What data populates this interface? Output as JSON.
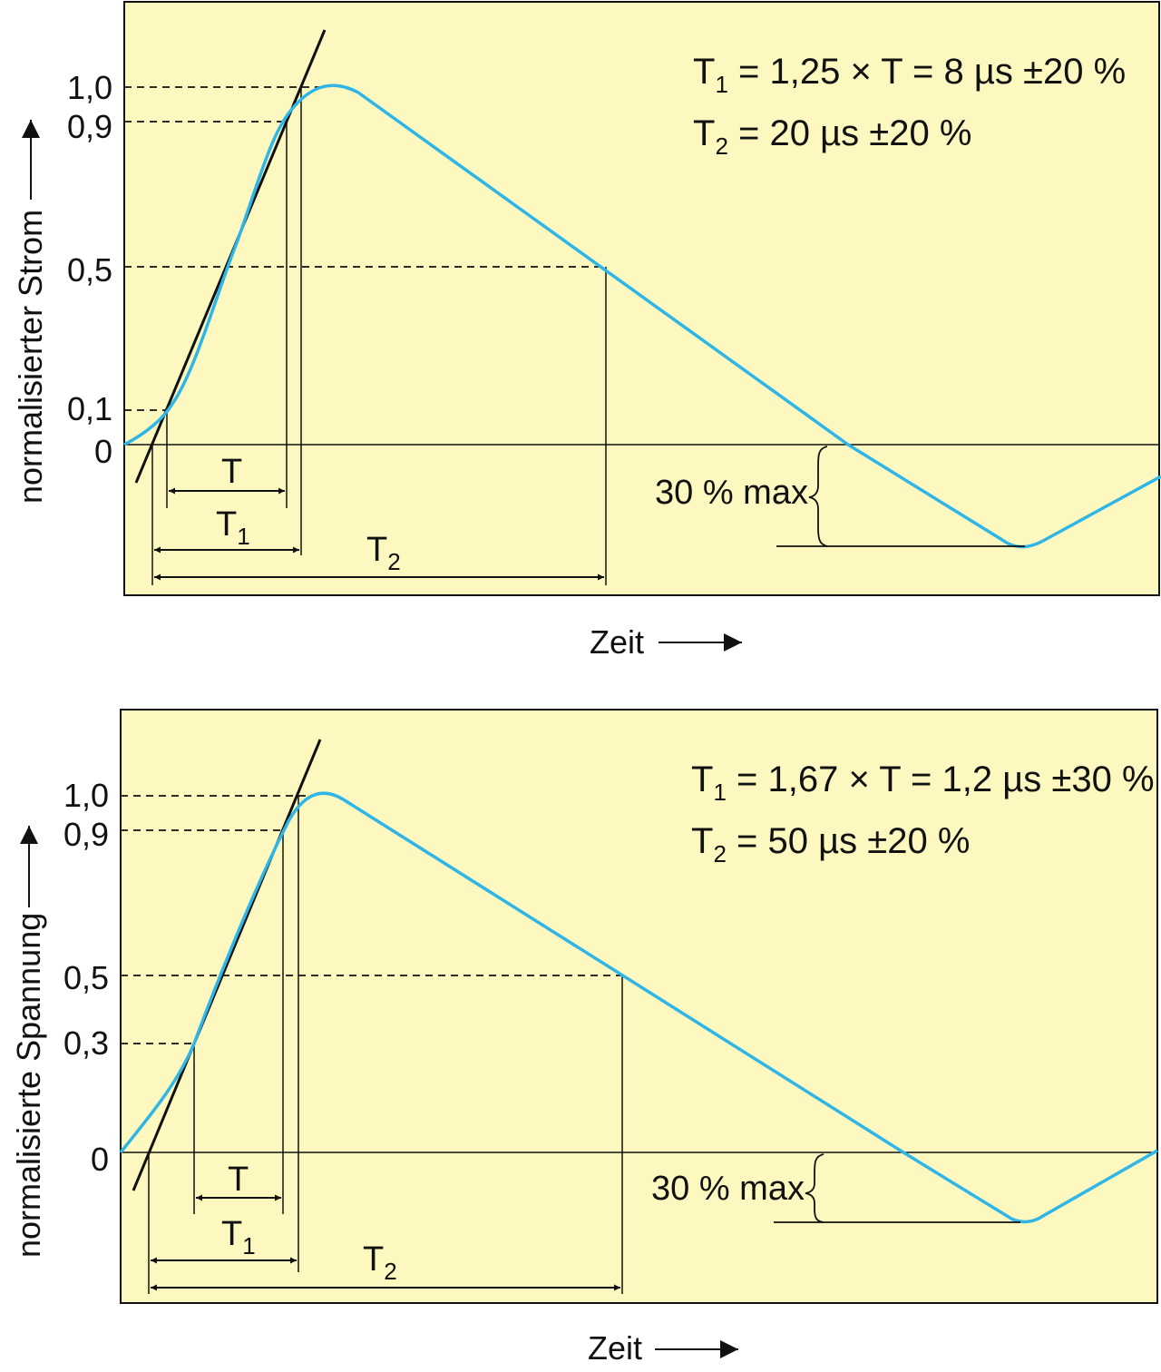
{
  "colors": {
    "background": "#fdf8c0",
    "curve": "#2fb6e6",
    "ink": "#111111"
  },
  "diagrams": [
    {
      "y_axis_label": "normalisierter Strom",
      "x_axis_label": "Zeit",
      "y_ticks": [
        {
          "value": 1.0,
          "label": "1,0"
        },
        {
          "value": 0.9,
          "label": "0,9"
        },
        {
          "value": 0.5,
          "label": "0,5"
        },
        {
          "value": 0.1,
          "label": "0,1"
        },
        {
          "value": 0.0,
          "label": "0"
        }
      ],
      "eq1": {
        "lead": "T",
        "sub": "1",
        "rest": " = 1,25 × T = 8 µs ±20 %"
      },
      "eq2": {
        "lead": "T",
        "sub": "2",
        "rest": " = 20 µs ±20 %"
      },
      "undershoot_label": "30 % max",
      "interval_t": "T",
      "interval_t1": {
        "lead": "T",
        "sub": "1"
      },
      "interval_t2": {
        "lead": "T",
        "sub": "2"
      }
    },
    {
      "y_axis_label": "normalisierte Spannung",
      "x_axis_label": "Zeit",
      "y_ticks": [
        {
          "value": 1.0,
          "label": "1,0"
        },
        {
          "value": 0.9,
          "label": "0,9"
        },
        {
          "value": 0.5,
          "label": "0,5"
        },
        {
          "value": 0.3,
          "label": "0,3"
        },
        {
          "value": 0.0,
          "label": "0"
        }
      ],
      "eq1": {
        "lead": "T",
        "sub": "1",
        "rest": " = 1,67 × T = 1,2 µs ±30 %"
      },
      "eq2": {
        "lead": "T",
        "sub": "2",
        "rest": " = 50 µs ±20 %"
      },
      "undershoot_label": "30 % max",
      "interval_t": "T",
      "interval_t1": {
        "lead": "T",
        "sub": "1"
      },
      "interval_t2": {
        "lead": "T",
        "sub": "2"
      }
    }
  ]
}
